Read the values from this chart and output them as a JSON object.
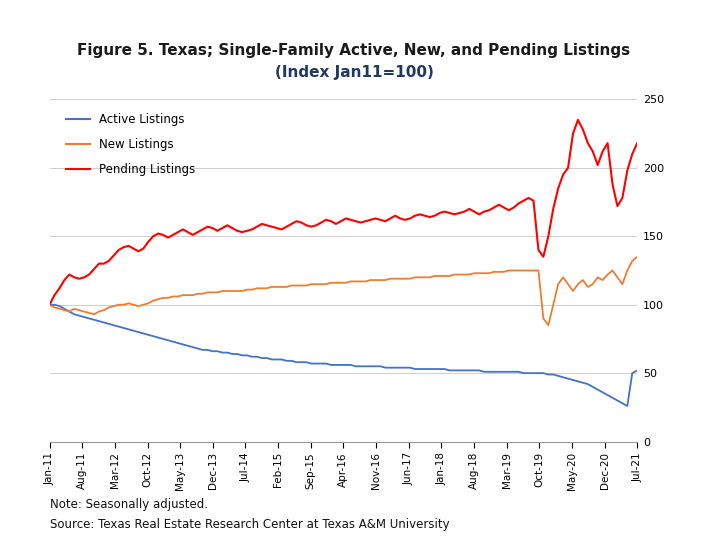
{
  "title_line1": "Figure 5. Texas; Single-Family Active, New, and Pending Listings",
  "title_line2": "(Index Jan11=100)",
  "title_color1": "#1a1a1a",
  "title_color2": "#1F3864",
  "note": "Note: Seasonally adjusted.",
  "source": "Source: Texas Real Estate Research Center at Texas A&M University",
  "active_color": "#4472C4",
  "new_color": "#ED7D31",
  "pending_color": "#FF0000",
  "ylim": [
    0,
    250
  ],
  "yticks": [
    0,
    50,
    100,
    150,
    200,
    250
  ],
  "legend_labels": [
    "Active Listings",
    "New Listings",
    "Pending Listings"
  ],
  "xtick_labels": [
    "Jan-11",
    "Aug-11",
    "Mar-12",
    "Oct-12",
    "May-13",
    "Dec-13",
    "Jul-14",
    "Feb-15",
    "Sep-15",
    "Apr-16",
    "Nov-16",
    "Jun-17",
    "Jan-18",
    "Aug-18",
    "Mar-19",
    "Oct-19",
    "May-20",
    "Dec-20",
    "Jul-21"
  ],
  "active_values": [
    100,
    100,
    99,
    97,
    95,
    93,
    92,
    91,
    90,
    89,
    88,
    87,
    86,
    85,
    84,
    83,
    82,
    81,
    80,
    79,
    78,
    77,
    76,
    75,
    74,
    73,
    72,
    71,
    70,
    69,
    68,
    67,
    67,
    66,
    66,
    65,
    65,
    64,
    64,
    63,
    63,
    62,
    62,
    61,
    61,
    60,
    60,
    60,
    59,
    59,
    58,
    58,
    58,
    57,
    57,
    57,
    57,
    56,
    56,
    56,
    56,
    56,
    55,
    55,
    55,
    55,
    55,
    55,
    54,
    54,
    54,
    54,
    54,
    54,
    53,
    53,
    53,
    53,
    53,
    53,
    53,
    52,
    52,
    52,
    52,
    52,
    52,
    52,
    51,
    51,
    51,
    51,
    51,
    51,
    51,
    51,
    50,
    50,
    50,
    50,
    50,
    49,
    49,
    48,
    47,
    46,
    45,
    44,
    43,
    42,
    40,
    38,
    36,
    34,
    32,
    30,
    28,
    26,
    50,
    52
  ],
  "new_values": [
    100,
    98,
    97,
    96,
    95,
    97,
    96,
    95,
    94,
    93,
    95,
    96,
    98,
    99,
    100,
    100,
    101,
    100,
    99,
    100,
    101,
    103,
    104,
    105,
    105,
    106,
    106,
    107,
    107,
    107,
    108,
    108,
    109,
    109,
    109,
    110,
    110,
    110,
    110,
    110,
    111,
    111,
    112,
    112,
    112,
    113,
    113,
    113,
    113,
    114,
    114,
    114,
    114,
    115,
    115,
    115,
    115,
    116,
    116,
    116,
    116,
    117,
    117,
    117,
    117,
    118,
    118,
    118,
    118,
    119,
    119,
    119,
    119,
    119,
    120,
    120,
    120,
    120,
    121,
    121,
    121,
    121,
    122,
    122,
    122,
    122,
    123,
    123,
    123,
    123,
    124,
    124,
    124,
    125,
    125,
    125,
    125,
    125,
    125,
    125,
    90,
    85,
    100,
    115,
    120,
    115,
    110,
    115,
    118,
    113,
    115,
    120,
    118,
    122,
    125,
    120,
    115,
    125,
    132,
    135
  ],
  "pending_values": [
    100,
    107,
    112,
    118,
    122,
    120,
    119,
    120,
    122,
    126,
    130,
    130,
    132,
    136,
    140,
    142,
    143,
    141,
    139,
    141,
    146,
    150,
    152,
    151,
    149,
    151,
    153,
    155,
    153,
    151,
    153,
    155,
    157,
    156,
    154,
    156,
    158,
    156,
    154,
    153,
    154,
    155,
    157,
    159,
    158,
    157,
    156,
    155,
    157,
    159,
    161,
    160,
    158,
    157,
    158,
    160,
    162,
    161,
    159,
    161,
    163,
    162,
    161,
    160,
    161,
    162,
    163,
    162,
    161,
    163,
    165,
    163,
    162,
    163,
    165,
    166,
    165,
    164,
    165,
    167,
    168,
    167,
    166,
    167,
    168,
    170,
    168,
    166,
    168,
    169,
    171,
    173,
    171,
    169,
    171,
    174,
    176,
    178,
    176,
    140,
    135,
    150,
    170,
    185,
    195,
    200,
    225,
    235,
    228,
    218,
    212,
    202,
    212,
    218,
    188,
    172,
    178,
    198,
    210,
    218
  ]
}
